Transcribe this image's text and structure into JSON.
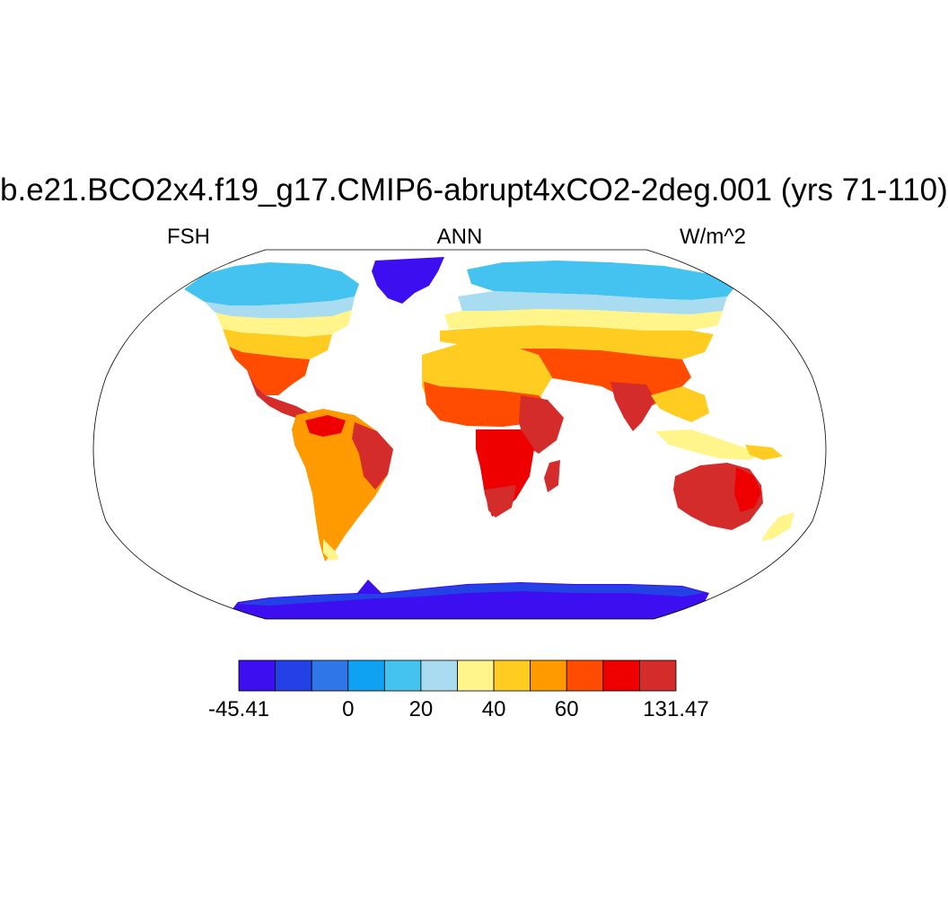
{
  "title": "b.e21.BCO2x4.f19_g17.CMIP6-abrupt4xCO2-2deg.001 (yrs 71-110)",
  "subtitle_left": "FSH",
  "subtitle_center": "ANN",
  "subtitle_right": "W/m^2",
  "map": {
    "projection": "Robinson",
    "variable": "FSH",
    "season": "ANN",
    "units": "W/m^2"
  },
  "colorbar": {
    "min": -45.41,
    "max": 131.47,
    "colors": [
      "#3c0ef0",
      "#2441e6",
      "#2f77e8",
      "#10a2f2",
      "#44c3f0",
      "#a9dcf0",
      "#fff58a",
      "#ffcc22",
      "#ff9a00",
      "#ff4c00",
      "#ee0000",
      "#d42b2b"
    ],
    "tick_labels": [
      {
        "text": "-45.41",
        "boundary": 0
      },
      {
        "text": "0",
        "boundary": 3
      },
      {
        "text": "20",
        "boundary": 5
      },
      {
        "text": "40",
        "boundary": 7
      },
      {
        "text": "60",
        "boundary": 9
      },
      {
        "text": "131.47",
        "boundary": 12
      }
    ]
  }
}
